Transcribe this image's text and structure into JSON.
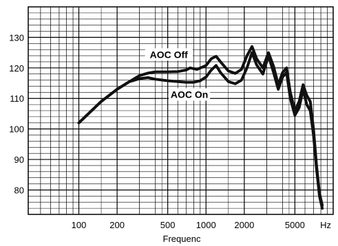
{
  "chart_data": {
    "type": "line",
    "title": "",
    "xlabel": "Frequenc",
    "ylabel": "",
    "x_scale": "log",
    "xlim": [
      40,
      10000
    ],
    "ylim": [
      72,
      140
    ],
    "grid": true,
    "x_ticks": [
      100,
      200,
      500,
      1000,
      2000,
      5000
    ],
    "x_tick_labels": [
      "100",
      "200",
      "500",
      "1000",
      "2000",
      "5000"
    ],
    "x_unit_label": "Hz",
    "y_ticks": [
      80,
      90,
      100,
      110,
      120,
      130
    ],
    "y_tick_labels": [
      "80",
      "90",
      "100",
      "110",
      "120",
      "130"
    ],
    "series": [
      {
        "name": "AOC Off",
        "color": "#111111",
        "x": [
          100,
          150,
          200,
          250,
          300,
          350,
          400,
          500,
          600,
          700,
          750,
          850,
          1000,
          1100,
          1200,
          1300,
          1500,
          1700,
          1900,
          2100,
          2300,
          2500,
          2800,
          3100,
          3400,
          3700,
          4000,
          4300,
          4600,
          5000,
          5400,
          5800,
          6200,
          6600,
          7000,
          7400,
          7800,
          8200
        ],
        "y": [
          102,
          109,
          113,
          115.5,
          117.5,
          118.3,
          118.7,
          118.7,
          118.8,
          119.3,
          120,
          119.5,
          120.8,
          123,
          123.8,
          122,
          119,
          118.2,
          119.5,
          124,
          127,
          123,
          120,
          125,
          120.5,
          114.5,
          118.5,
          120,
          112,
          106,
          109,
          114.5,
          111,
          109,
          100,
          88,
          79,
          75
        ]
      },
      {
        "name": "AOC On",
        "color": "#111111",
        "x": [
          100,
          150,
          200,
          250,
          300,
          350,
          400,
          500,
          600,
          700,
          800,
          900,
          1000,
          1100,
          1200,
          1300,
          1500,
          1700,
          1900,
          2100,
          2300,
          2500,
          2800,
          3100,
          3400,
          3700,
          4000,
          4300,
          4600,
          5000,
          5400,
          5800,
          6200,
          6600,
          7000,
          7400,
          7800,
          8200
        ],
        "y": [
          102,
          109,
          113,
          115.5,
          116.5,
          116.8,
          116.3,
          115.8,
          115.5,
          115.3,
          115.3,
          115.8,
          117,
          119.3,
          120.8,
          118.5,
          115.5,
          114.8,
          116,
          120,
          125,
          121,
          118,
          124,
          118.5,
          113,
          117,
          118.5,
          110,
          104.5,
          107,
          113,
          108,
          106,
          98,
          87,
          78,
          74
        ]
      }
    ],
    "annotations": [
      {
        "text": "AOC Off",
        "x": 510,
        "y": 124.4
      },
      {
        "text": "AOC On",
        "x": 740,
        "y": 111.3
      }
    ]
  }
}
